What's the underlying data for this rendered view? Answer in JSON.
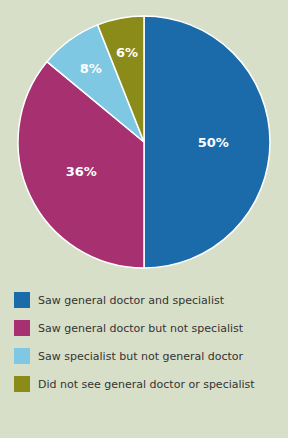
{
  "chart_data": {
    "type": "pie",
    "categories": [
      "Saw general doctor and specialist",
      "Saw general doctor but not specialist",
      "Saw specialist but not general doctor",
      "Did not see general doctor or specialist"
    ],
    "values": [
      50,
      36,
      8,
      6
    ],
    "value_labels": [
      "50%",
      "36%",
      "8%",
      "6%"
    ],
    "colors": [
      "#1b6aaa",
      "#a63070",
      "#7ec8e3",
      "#8b8b1a"
    ],
    "data_labels": true,
    "legend": "bottom"
  }
}
